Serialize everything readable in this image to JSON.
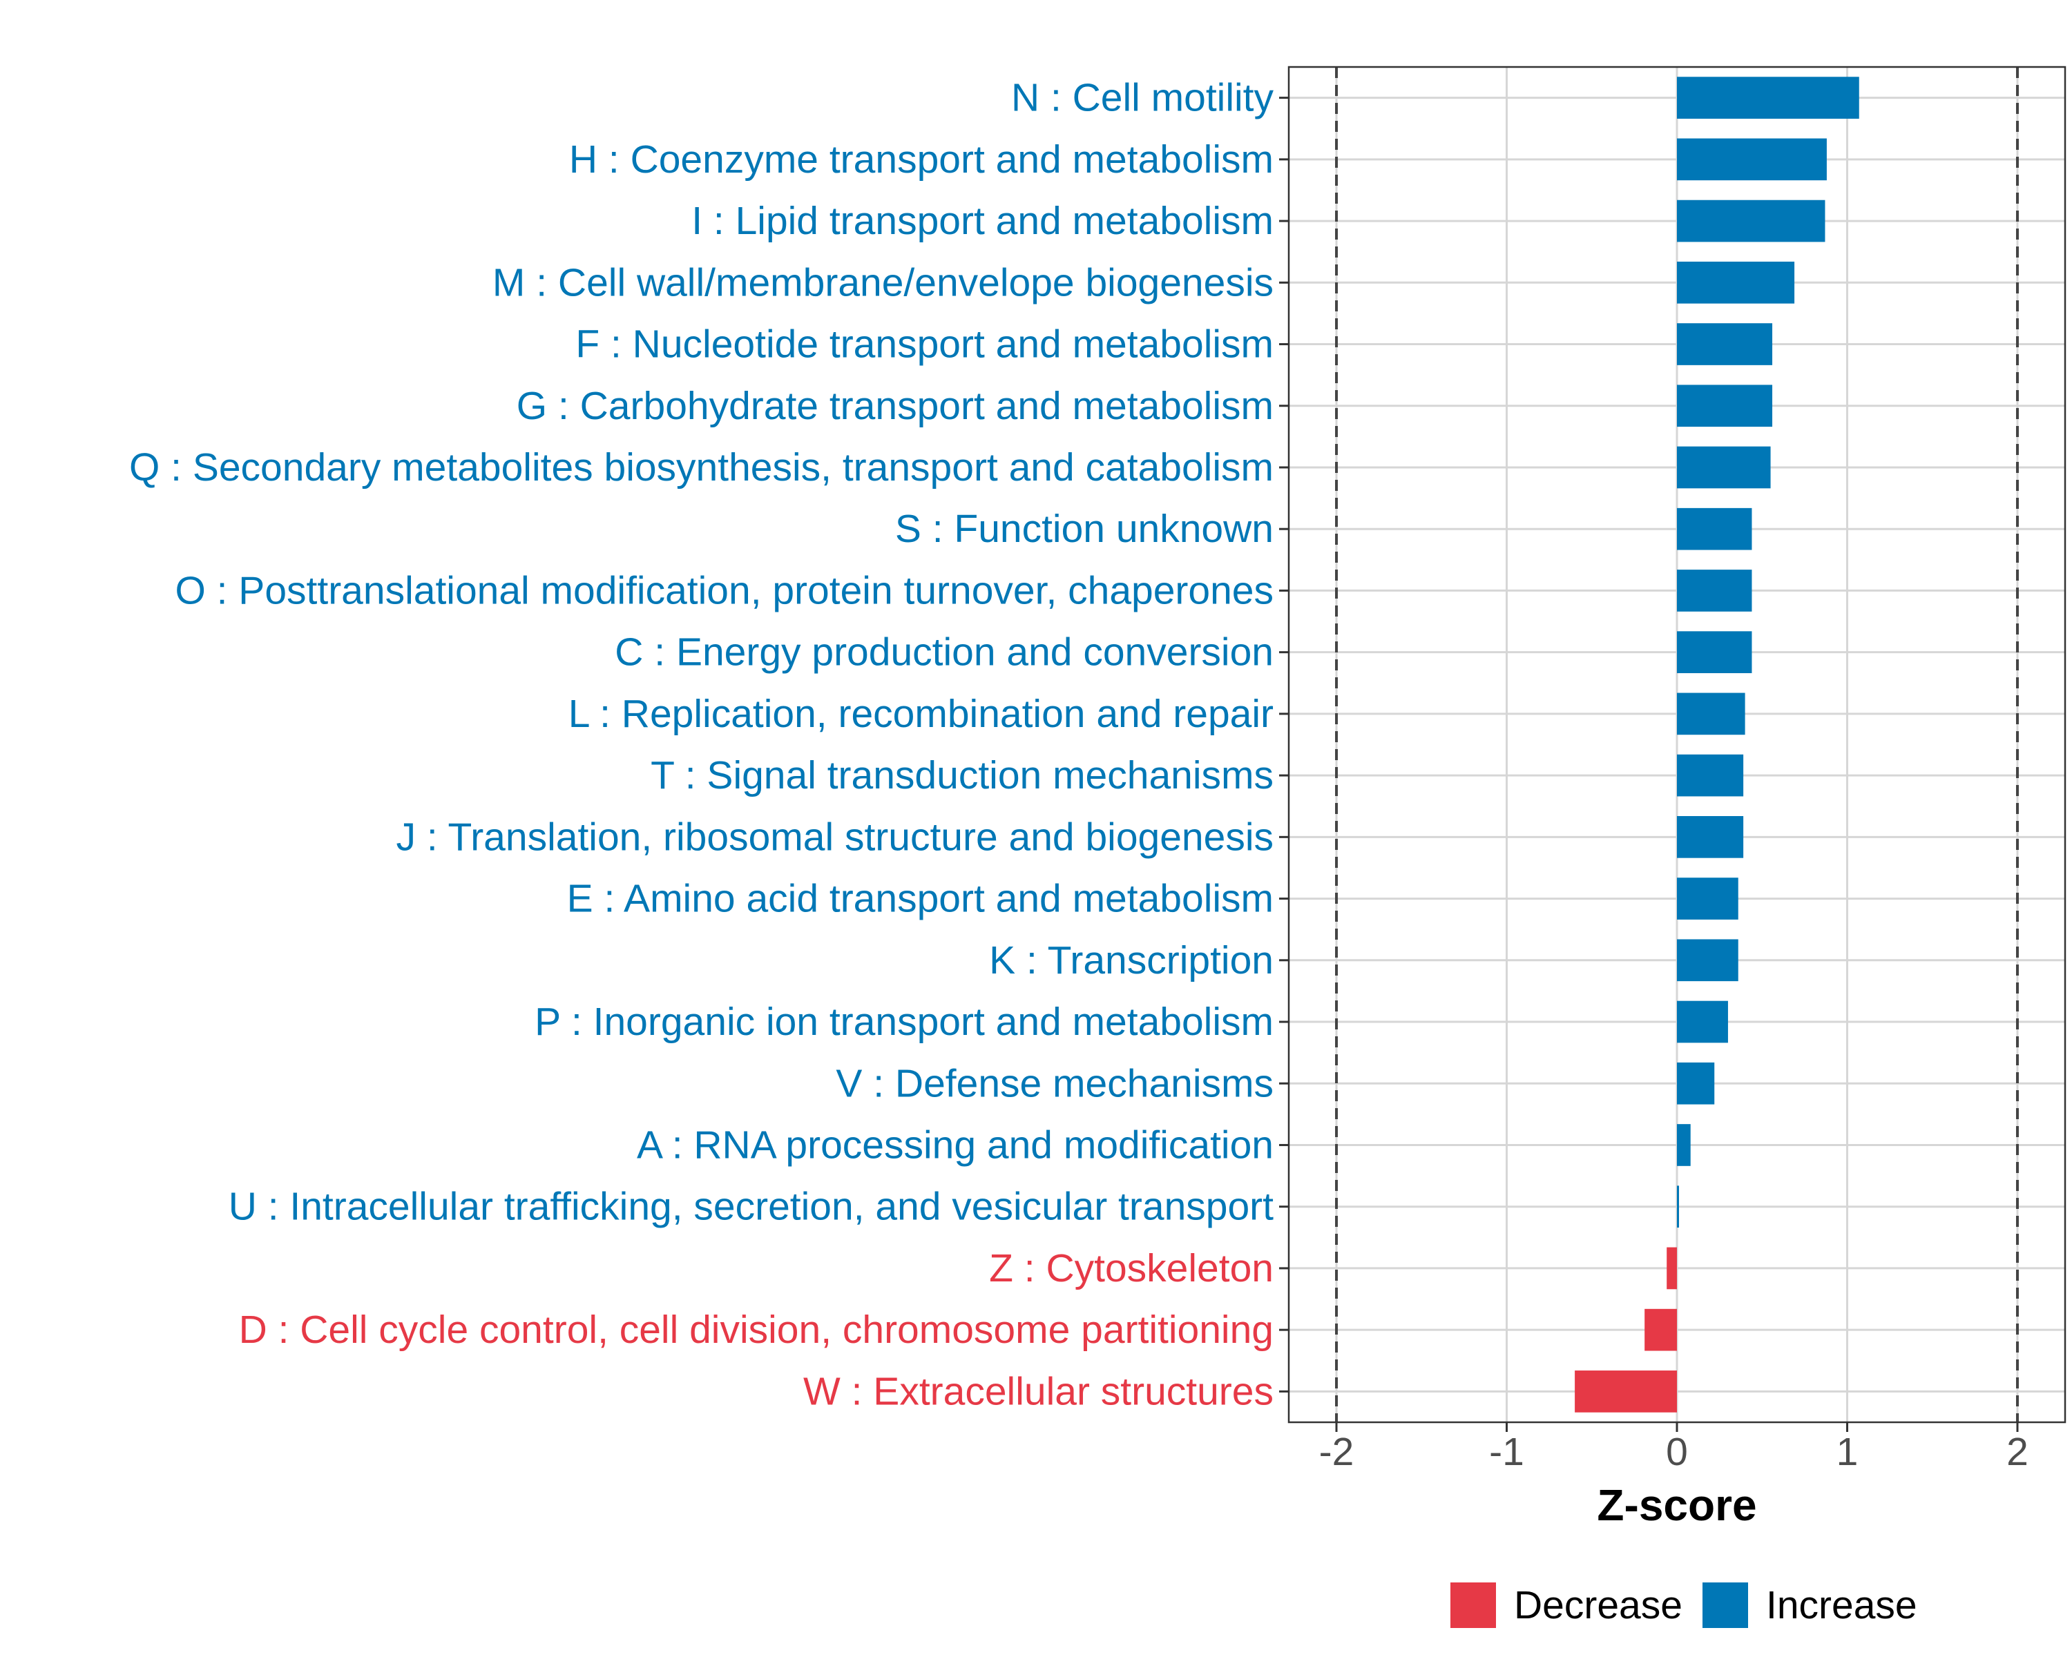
{
  "chart_data": {
    "type": "bar",
    "orientation": "horizontal",
    "categories": [
      "N : Cell motility",
      "H : Coenzyme transport and metabolism",
      "I : Lipid transport and metabolism",
      "M : Cell wall/membrane/envelope biogenesis",
      "F : Nucleotide transport and metabolism",
      "G : Carbohydrate transport and metabolism",
      "Q : Secondary metabolites biosynthesis, transport and catabolism",
      "S : Function unknown",
      "O : Posttranslational modification, protein turnover, chaperones",
      "C : Energy production and conversion",
      "L : Replication, recombination and repair",
      "T : Signal transduction mechanisms",
      "J : Translation, ribosomal structure and biogenesis",
      "E : Amino acid transport and metabolism",
      "K : Transcription",
      "P : Inorganic ion transport and metabolism",
      "V : Defense mechanisms",
      "A : RNA processing and modification",
      "U : Intracellular trafficking, secretion, and vesicular transport",
      "Z : Cytoskeleton",
      "D : Cell cycle control, cell division, chromosome partitioning",
      "W : Extracellular structures"
    ],
    "values": [
      1.07,
      0.88,
      0.87,
      0.69,
      0.56,
      0.56,
      0.55,
      0.44,
      0.44,
      0.44,
      0.4,
      0.39,
      0.39,
      0.36,
      0.36,
      0.3,
      0.22,
      0.08,
      0.01,
      -0.06,
      -0.19,
      -0.6
    ],
    "groups": [
      "Increase",
      "Increase",
      "Increase",
      "Increase",
      "Increase",
      "Increase",
      "Increase",
      "Increase",
      "Increase",
      "Increase",
      "Increase",
      "Increase",
      "Increase",
      "Increase",
      "Increase",
      "Increase",
      "Increase",
      "Increase",
      "Increase",
      "Decrease",
      "Decrease",
      "Decrease"
    ],
    "xlabel": "Z-score",
    "xlim": [
      -2.28,
      2.28
    ],
    "xticks": [
      -2,
      -1,
      0,
      1,
      2
    ],
    "xtick_labels": [
      "-2",
      "-1",
      "0",
      "1",
      "2"
    ],
    "threshold_lines": [
      -2,
      2
    ],
    "legend": {
      "position": "bottom",
      "items": [
        {
          "label": "Decrease",
          "color": "#E63946"
        },
        {
          "label": "Increase",
          "color": "#0077B6"
        }
      ]
    },
    "colors": {
      "Increase": "#0077B6",
      "Decrease": "#E63946"
    },
    "grid": true
  }
}
